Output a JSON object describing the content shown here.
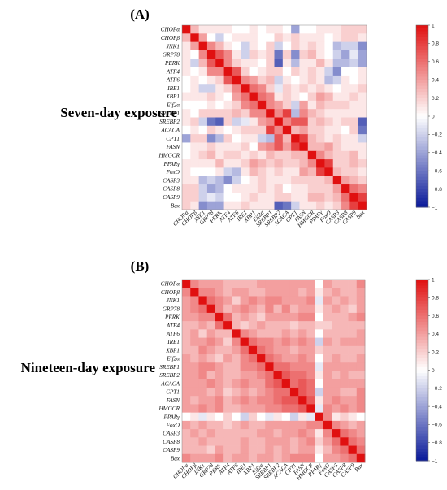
{
  "chart_data": [
    {
      "type": "heatmap",
      "panel_label": "(A)",
      "row_title": "Seven-day exposure",
      "labels": [
        "CHOPα",
        "CHOPβ",
        "JNK1",
        "GRP78",
        "PERK",
        "ATF4",
        "ATF6",
        "IRE1",
        "XBP1",
        "Eif2α",
        "SREBP1",
        "SREBP2",
        "ACACA",
        "CPT1",
        "FASN",
        "HMGCR",
        "PPARγ",
        "FoxO",
        "CASP3",
        "CASP8",
        "CASP9",
        "Bax"
      ],
      "values": [
        [
          1.0,
          0.3,
          0.1,
          0.1,
          0.1,
          0.1,
          0.0,
          0.0,
          0.1,
          0.0,
          0.1,
          0.1,
          0.0,
          -0.4,
          0.0,
          0.0,
          0.1,
          0.1,
          0.1,
          0.2,
          0.2,
          0.2
        ],
        [
          0.3,
          1.0,
          0.4,
          0.0,
          -0.2,
          0.0,
          0.1,
          0.1,
          0.1,
          0.0,
          0.0,
          0.2,
          0.1,
          0.2,
          0.1,
          0.1,
          0.1,
          0.0,
          0.1,
          0.2,
          0.2,
          0.1
        ],
        [
          0.1,
          0.4,
          1.0,
          0.5,
          0.3,
          0.1,
          0.0,
          -0.2,
          0.1,
          0.0,
          0.2,
          -0.2,
          0.0,
          0.2,
          0.1,
          0.2,
          0.1,
          0.0,
          -0.3,
          -0.2,
          -0.2,
          -0.5
        ],
        [
          0.1,
          0.0,
          0.5,
          1.0,
          0.7,
          0.5,
          0.1,
          -0.2,
          0.2,
          0.1,
          0.2,
          -0.6,
          0.2,
          -0.5,
          0.2,
          0.3,
          0.1,
          0.0,
          -0.2,
          -0.4,
          -0.1,
          -0.4
        ],
        [
          0.1,
          -0.2,
          0.3,
          0.7,
          1.0,
          0.5,
          0.2,
          0.1,
          0.1,
          0.0,
          0.2,
          -0.7,
          0.1,
          -0.3,
          0.1,
          0.1,
          0.3,
          0.1,
          -0.3,
          -0.3,
          -0.2,
          -0.4
        ],
        [
          0.1,
          0.0,
          0.1,
          0.5,
          0.5,
          1.0,
          0.7,
          0.2,
          0.0,
          0.1,
          0.2,
          0.2,
          0.0,
          0.2,
          0.1,
          0.2,
          0.1,
          -0.2,
          -0.5,
          0.0,
          0.0,
          0.1
        ],
        [
          0.0,
          0.1,
          0.0,
          0.1,
          0.2,
          0.7,
          1.0,
          0.5,
          0.4,
          0.2,
          0.3,
          -0.2,
          0.1,
          0.0,
          0.1,
          0.2,
          0.1,
          -0.3,
          -0.2,
          0.1,
          0.0,
          0.1
        ],
        [
          0.0,
          0.1,
          -0.2,
          -0.2,
          0.1,
          0.2,
          0.5,
          1.0,
          0.6,
          0.5,
          0.2,
          -0.1,
          0.2,
          0.1,
          0.2,
          0.1,
          0.2,
          0.1,
          0.0,
          0.1,
          0.1,
          0.2
        ],
        [
          0.1,
          0.1,
          0.1,
          0.2,
          0.1,
          0.0,
          0.4,
          0.6,
          1.0,
          0.6,
          0.5,
          0.1,
          0.2,
          0.1,
          0.0,
          0.2,
          0.4,
          0.3,
          0.1,
          0.1,
          0.2,
          0.1
        ],
        [
          0.0,
          0.0,
          0.0,
          0.1,
          0.0,
          0.1,
          0.2,
          0.5,
          0.6,
          1.0,
          0.5,
          0.4,
          0.2,
          -0.2,
          0.4,
          0.1,
          0.3,
          0.2,
          0.2,
          0.2,
          0.1,
          0.1
        ],
        [
          0.1,
          0.0,
          0.2,
          0.2,
          0.2,
          0.2,
          0.3,
          0.2,
          0.5,
          0.5,
          1.0,
          0.5,
          0.8,
          -0.3,
          0.5,
          0.3,
          0.2,
          0.1,
          0.1,
          0.1,
          0.1,
          0.1
        ],
        [
          0.1,
          0.2,
          -0.2,
          -0.6,
          -0.7,
          0.2,
          -0.2,
          -0.1,
          0.1,
          0.4,
          0.5,
          1.0,
          0.5,
          0.7,
          0.7,
          0.2,
          0.3,
          0.2,
          0.1,
          0.2,
          0.2,
          -0.7
        ],
        [
          0.0,
          0.1,
          0.0,
          0.2,
          0.1,
          0.0,
          0.1,
          0.2,
          0.2,
          0.2,
          0.8,
          0.5,
          1.0,
          0.3,
          0.4,
          0.2,
          0.2,
          0.1,
          0.1,
          0.0,
          0.2,
          -0.6
        ],
        [
          -0.4,
          0.2,
          0.2,
          -0.5,
          -0.3,
          0.2,
          0.0,
          0.1,
          0.1,
          -0.2,
          -0.3,
          0.7,
          0.3,
          1.0,
          0.8,
          0.3,
          0.2,
          0.1,
          0.2,
          0.1,
          0.1,
          -0.2
        ],
        [
          0.0,
          0.1,
          0.1,
          0.2,
          0.1,
          0.1,
          0.1,
          0.2,
          0.0,
          0.4,
          0.5,
          0.7,
          0.4,
          0.8,
          1.0,
          0.3,
          0.3,
          0.4,
          0.2,
          0.1,
          0.1,
          0.1
        ],
        [
          0.0,
          0.1,
          0.2,
          0.3,
          0.1,
          0.2,
          0.2,
          0.1,
          0.2,
          0.1,
          0.3,
          0.2,
          0.2,
          0.3,
          0.3,
          1.0,
          0.5,
          0.3,
          0.2,
          0.2,
          0.3,
          0.1
        ],
        [
          0.1,
          0.1,
          0.1,
          0.1,
          0.3,
          0.1,
          0.1,
          0.2,
          0.4,
          0.3,
          0.2,
          0.3,
          0.2,
          0.2,
          0.3,
          0.5,
          1.0,
          0.8,
          0.2,
          0.2,
          0.3,
          0.2
        ],
        [
          0.1,
          0.0,
          0.0,
          0.0,
          0.1,
          -0.2,
          -0.3,
          0.1,
          0.3,
          0.2,
          0.1,
          0.2,
          0.1,
          0.1,
          0.4,
          0.3,
          0.8,
          1.0,
          0.3,
          0.2,
          0.2,
          0.1
        ],
        [
          0.1,
          0.1,
          -0.3,
          -0.2,
          -0.3,
          -0.5,
          -0.2,
          0.0,
          0.1,
          0.2,
          0.1,
          0.1,
          0.1,
          0.2,
          0.2,
          0.2,
          0.2,
          0.3,
          1.0,
          0.4,
          0.3,
          0.2
        ],
        [
          0.2,
          0.2,
          -0.2,
          -0.4,
          -0.3,
          0.0,
          0.1,
          0.1,
          0.1,
          0.2,
          0.1,
          0.2,
          0.0,
          0.1,
          0.1,
          0.2,
          0.2,
          0.2,
          0.4,
          1.0,
          0.6,
          0.5
        ],
        [
          0.2,
          0.2,
          -0.2,
          -0.1,
          -0.2,
          0.0,
          0.0,
          0.1,
          0.2,
          0.1,
          0.1,
          0.2,
          0.2,
          0.1,
          0.1,
          0.3,
          0.3,
          0.2,
          0.3,
          0.6,
          1.0,
          0.8
        ],
        [
          0.2,
          0.1,
          -0.5,
          -0.4,
          -0.4,
          0.1,
          0.1,
          0.2,
          0.1,
          0.1,
          0.1,
          -0.7,
          -0.6,
          -0.2,
          0.1,
          0.1,
          0.2,
          0.1,
          0.2,
          0.5,
          0.8,
          1.0
        ]
      ],
      "colorbar_ticks": [
        "1",
        "0.8",
        "0.6",
        "0.4",
        "0.2",
        "0",
        "−0.2",
        "−0.4",
        "−0.6",
        "−0.8",
        "−1"
      ],
      "vmin": -1,
      "vmax": 1,
      "colormap": {
        "low": "#0a1a9a",
        "mid": "#ffffff",
        "high": "#e01010"
      }
    },
    {
      "type": "heatmap",
      "panel_label": "(B)",
      "row_title": "Nineteen-day exposure",
      "labels": [
        "CHOPα",
        "CHOPβ",
        "JNK1",
        "GRP78",
        "PERK",
        "ATF4",
        "ATF6",
        "IRE1",
        "XBP1",
        "Eif2α",
        "SREBP1",
        "SREBP2",
        "ACACA",
        "CPT1",
        "FASN",
        "HMGCR",
        "PPARγ",
        "FoxO",
        "CASP3",
        "CASP8",
        "CASP9",
        "Bax"
      ],
      "values": [
        [
          1.0,
          0.5,
          0.4,
          0.4,
          0.4,
          0.3,
          0.3,
          0.3,
          0.3,
          0.4,
          0.4,
          0.4,
          0.4,
          0.4,
          0.4,
          0.4,
          0.0,
          0.4,
          0.3,
          0.3,
          0.3,
          0.5
        ],
        [
          0.5,
          1.0,
          0.5,
          0.5,
          0.4,
          0.3,
          0.4,
          0.4,
          0.3,
          0.3,
          0.4,
          0.4,
          0.4,
          0.4,
          0.3,
          0.4,
          0.1,
          0.3,
          0.4,
          0.3,
          0.3,
          0.4
        ],
        [
          0.4,
          0.5,
          1.0,
          0.6,
          0.5,
          0.4,
          0.2,
          0.4,
          0.5,
          0.4,
          0.5,
          0.5,
          0.4,
          0.4,
          0.4,
          0.5,
          -0.1,
          0.4,
          0.3,
          0.4,
          0.3,
          0.4
        ],
        [
          0.4,
          0.5,
          0.6,
          1.0,
          0.5,
          0.3,
          0.4,
          0.5,
          0.4,
          0.3,
          0.5,
          0.3,
          0.5,
          0.3,
          0.4,
          0.4,
          0.1,
          0.3,
          0.4,
          0.3,
          0.2,
          0.4
        ],
        [
          0.4,
          0.4,
          0.5,
          0.5,
          1.0,
          0.6,
          0.3,
          0.4,
          0.3,
          0.2,
          0.4,
          0.4,
          0.4,
          0.4,
          0.5,
          0.5,
          0.0,
          0.3,
          0.3,
          0.3,
          0.4,
          0.5
        ],
        [
          0.3,
          0.3,
          0.4,
          0.3,
          0.6,
          1.0,
          0.3,
          0.2,
          0.3,
          0.4,
          0.3,
          0.3,
          0.3,
          0.2,
          0.3,
          0.3,
          0.2,
          0.2,
          0.3,
          0.3,
          0.3,
          0.3
        ],
        [
          0.3,
          0.4,
          0.2,
          0.4,
          0.3,
          0.3,
          1.0,
          0.5,
          0.4,
          0.3,
          0.3,
          0.3,
          0.4,
          0.3,
          0.4,
          0.3,
          0.0,
          0.3,
          0.3,
          0.3,
          0.3,
          0.4
        ],
        [
          0.3,
          0.4,
          0.4,
          0.5,
          0.4,
          0.2,
          0.5,
          1.0,
          0.6,
          0.5,
          0.5,
          0.4,
          0.5,
          0.4,
          0.5,
          0.4,
          -0.2,
          0.4,
          0.3,
          0.4,
          0.4,
          0.4
        ],
        [
          0.3,
          0.3,
          0.5,
          0.4,
          0.3,
          0.3,
          0.4,
          0.6,
          1.0,
          0.6,
          0.5,
          0.4,
          0.4,
          0.3,
          0.4,
          0.4,
          0.2,
          0.3,
          0.3,
          0.3,
          0.3,
          0.3
        ],
        [
          0.4,
          0.3,
          0.4,
          0.3,
          0.2,
          0.4,
          0.3,
          0.5,
          0.6,
          1.0,
          0.6,
          0.5,
          0.4,
          0.4,
          0.5,
          0.4,
          0.0,
          0.3,
          0.4,
          0.3,
          0.3,
          0.4
        ],
        [
          0.4,
          0.4,
          0.5,
          0.5,
          0.4,
          0.3,
          0.3,
          0.5,
          0.5,
          0.6,
          1.0,
          0.6,
          0.6,
          0.5,
          0.5,
          0.5,
          -0.1,
          0.4,
          0.4,
          0.4,
          0.4,
          0.4
        ],
        [
          0.4,
          0.4,
          0.5,
          0.3,
          0.4,
          0.3,
          0.3,
          0.4,
          0.4,
          0.5,
          0.6,
          1.0,
          0.7,
          0.6,
          0.6,
          0.5,
          0.1,
          0.4,
          0.3,
          0.4,
          0.3,
          0.3
        ],
        [
          0.4,
          0.4,
          0.4,
          0.5,
          0.4,
          0.3,
          0.4,
          0.5,
          0.4,
          0.4,
          0.6,
          0.7,
          1.0,
          0.6,
          0.7,
          0.6,
          0.0,
          0.4,
          0.4,
          0.4,
          0.4,
          0.4
        ],
        [
          0.4,
          0.4,
          0.4,
          0.3,
          0.4,
          0.2,
          0.3,
          0.4,
          0.3,
          0.4,
          0.5,
          0.6,
          0.6,
          1.0,
          0.7,
          0.6,
          -0.2,
          0.4,
          0.4,
          0.3,
          0.3,
          0.5
        ],
        [
          0.4,
          0.3,
          0.4,
          0.4,
          0.5,
          0.3,
          0.4,
          0.5,
          0.4,
          0.5,
          0.5,
          0.6,
          0.7,
          0.7,
          1.0,
          0.7,
          0.1,
          0.4,
          0.5,
          0.4,
          0.4,
          0.5
        ],
        [
          0.4,
          0.4,
          0.5,
          0.4,
          0.5,
          0.3,
          0.3,
          0.4,
          0.4,
          0.4,
          0.5,
          0.5,
          0.6,
          0.6,
          0.7,
          1.0,
          -0.1,
          0.5,
          0.4,
          0.5,
          0.4,
          0.5
        ],
        [
          0.0,
          0.1,
          -0.1,
          0.1,
          0.0,
          0.2,
          0.0,
          -0.2,
          0.2,
          0.0,
          -0.1,
          0.1,
          0.0,
          -0.2,
          0.1,
          -0.1,
          1.0,
          0.5,
          0.1,
          0.2,
          0.1,
          0.0
        ],
        [
          0.4,
          0.3,
          0.4,
          0.3,
          0.3,
          0.2,
          0.3,
          0.4,
          0.3,
          0.3,
          0.4,
          0.4,
          0.4,
          0.4,
          0.4,
          0.5,
          0.5,
          1.0,
          0.5,
          0.4,
          0.3,
          0.4
        ],
        [
          0.3,
          0.4,
          0.3,
          0.4,
          0.3,
          0.3,
          0.3,
          0.3,
          0.3,
          0.4,
          0.4,
          0.3,
          0.4,
          0.4,
          0.5,
          0.4,
          0.1,
          0.5,
          1.0,
          0.6,
          0.5,
          0.4
        ],
        [
          0.3,
          0.3,
          0.4,
          0.3,
          0.3,
          0.3,
          0.3,
          0.4,
          0.3,
          0.3,
          0.4,
          0.4,
          0.4,
          0.3,
          0.4,
          0.5,
          0.2,
          0.4,
          0.6,
          1.0,
          0.6,
          0.5
        ],
        [
          0.3,
          0.3,
          0.3,
          0.2,
          0.4,
          0.3,
          0.3,
          0.4,
          0.3,
          0.3,
          0.4,
          0.3,
          0.4,
          0.3,
          0.4,
          0.4,
          0.1,
          0.3,
          0.5,
          0.6,
          1.0,
          0.6
        ],
        [
          0.5,
          0.4,
          0.4,
          0.4,
          0.5,
          0.3,
          0.4,
          0.4,
          0.3,
          0.4,
          0.4,
          0.3,
          0.4,
          0.5,
          0.5,
          0.5,
          0.0,
          0.4,
          0.4,
          0.5,
          0.6,
          1.0
        ]
      ],
      "colorbar_ticks": [
        "1",
        "0.8",
        "0.6",
        "0.4",
        "0.2",
        "0",
        "−0.2",
        "−0.4",
        "−0.6",
        "−0.8",
        "−1"
      ],
      "vmin": -1,
      "vmax": 1,
      "colormap": {
        "low": "#0a1a9a",
        "mid": "#ffffff",
        "high": "#e01010"
      }
    }
  ]
}
